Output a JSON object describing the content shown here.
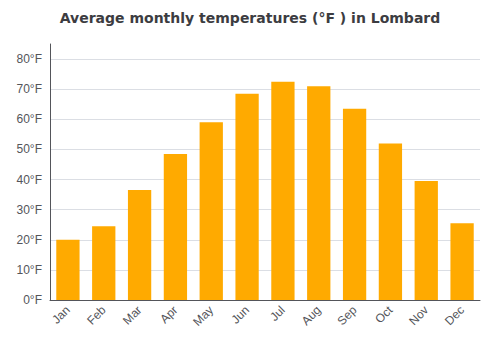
{
  "chart_data": {
    "type": "bar",
    "title": "Average monthly temperatures (°F ) in Lombard",
    "categories": [
      "Jan",
      "Feb",
      "Mar",
      "Apr",
      "May",
      "Jun",
      "Jul",
      "Aug",
      "Sep",
      "Oct",
      "Nov",
      "Dec"
    ],
    "values": [
      20,
      24.5,
      36.5,
      48.5,
      59,
      68.5,
      72.5,
      71,
      63.5,
      52,
      39.5,
      25.5
    ],
    "color": "#FFAA00",
    "ylim": [
      0,
      85
    ],
    "yticks": [
      {
        "value": 0,
        "label": "0°F"
      },
      {
        "value": 10,
        "label": "10°F"
      },
      {
        "value": 20,
        "label": "20°F"
      },
      {
        "value": 30,
        "label": "30°F"
      },
      {
        "value": 40,
        "label": "40°F"
      },
      {
        "value": 50,
        "label": "50°F"
      },
      {
        "value": 60,
        "label": "60°F"
      },
      {
        "value": 70,
        "label": "70°F"
      },
      {
        "value": 80,
        "label": "80°F"
      }
    ],
    "grid": true
  }
}
